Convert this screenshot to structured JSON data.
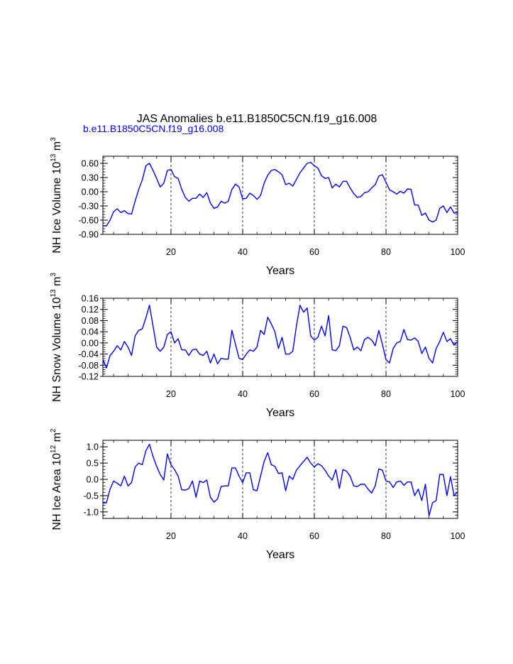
{
  "figure": {
    "title": "JAS Anomalies b.e11.B1850C5CN.f19_g16.008",
    "legend_label": "b.e11.B1850C5CN.f19_g16.008",
    "line_color": "#0000ff",
    "title_color": "#000000",
    "legend_color": "#0000ff"
  },
  "chart_data": [
    {
      "type": "line",
      "panel": "nh-ice-volume",
      "ylabel": "NH Ice Volume 10",
      "ylabel_exp": "13",
      "ylabel_unit": "m",
      "ylabel_unit_exp": "3",
      "xlabel": "Years",
      "xlim": [
        1,
        100
      ],
      "ylim": [
        -0.9,
        0.75
      ],
      "yticks": [
        "0.60",
        "0.30",
        "0.00",
        "-0.30",
        "-0.60",
        "-0.90"
      ],
      "ytick_values": [
        0.6,
        0.3,
        0.0,
        -0.3,
        -0.6,
        -0.9
      ],
      "xticks": [
        "20",
        "40",
        "60",
        "80",
        "100"
      ],
      "xtick_values": [
        20,
        40,
        60,
        80,
        100
      ],
      "grid_x": [
        20,
        40,
        60,
        80
      ],
      "series": [
        {
          "x": [
            1,
            2,
            3,
            4,
            5,
            6,
            7,
            8,
            9,
            10,
            11,
            12,
            13,
            14,
            15,
            16,
            17,
            18,
            19,
            20,
            21,
            22,
            23,
            24,
            25,
            26,
            27,
            28,
            29,
            30,
            31,
            32,
            33,
            34,
            35,
            36,
            37,
            38,
            39,
            40,
            41,
            42,
            43,
            44,
            45,
            46,
            47,
            48,
            49,
            50,
            51,
            52,
            53,
            54,
            55,
            56,
            57,
            58,
            59,
            60,
            61,
            62,
            63,
            64,
            65,
            66,
            67,
            68,
            69,
            70,
            71,
            72,
            73,
            74,
            75,
            76,
            77,
            78,
            79,
            80,
            81,
            82,
            83,
            84,
            85,
            86,
            87,
            88,
            89,
            90,
            91,
            92,
            93,
            94,
            95,
            96,
            97,
            98,
            99,
            100
          ],
          "values": [
            -0.72,
            -0.72,
            -0.6,
            -0.42,
            -0.36,
            -0.44,
            -0.4,
            -0.46,
            -0.47,
            -0.2,
            0.05,
            0.25,
            0.55,
            0.6,
            0.45,
            0.28,
            0.1,
            0.18,
            0.45,
            0.47,
            0.32,
            0.28,
            0.05,
            -0.12,
            -0.2,
            -0.14,
            -0.14,
            -0.05,
            -0.12,
            -0.02,
            -0.24,
            -0.35,
            -0.32,
            -0.2,
            -0.24,
            -0.2,
            0.05,
            0.16,
            0.1,
            -0.15,
            -0.14,
            -0.03,
            -0.08,
            -0.16,
            -0.08,
            0.18,
            0.35,
            0.45,
            0.47,
            0.42,
            0.36,
            0.15,
            0.18,
            0.12,
            0.26,
            0.4,
            0.5,
            0.6,
            0.62,
            0.55,
            0.5,
            0.34,
            0.28,
            0.3,
            0.08,
            0.16,
            0.1,
            0.22,
            0.22,
            0.08,
            -0.04,
            -0.12,
            -0.1,
            -0.02,
            0.0,
            0.08,
            0.15,
            0.33,
            0.36,
            0.2,
            0.04,
            0.0,
            -0.05,
            0.01,
            -0.03,
            0.06,
            0.05,
            -0.28,
            -0.28,
            -0.5,
            -0.45,
            -0.6,
            -0.64,
            -0.6,
            -0.35,
            -0.3,
            -0.44,
            -0.32,
            -0.45,
            -0.44
          ]
        }
      ]
    },
    {
      "type": "line",
      "panel": "nh-snow-volume",
      "ylabel": "NH Snow Volume 10",
      "ylabel_exp": "13",
      "ylabel_unit": "m",
      "ylabel_unit_exp": "3",
      "xlabel": "Years",
      "xlim": [
        1,
        100
      ],
      "ylim": [
        -0.12,
        0.16
      ],
      "yticks": [
        "0.16",
        "0.12",
        "0.08",
        "0.04",
        "0.00",
        "-0.04",
        "-0.08",
        "-0.12"
      ],
      "ytick_values": [
        0.16,
        0.12,
        0.08,
        0.04,
        0.0,
        -0.04,
        -0.08,
        -0.12
      ],
      "xticks": [
        "20",
        "40",
        "60",
        "80",
        "100"
      ],
      "xtick_values": [
        20,
        40,
        60,
        80,
        100
      ],
      "grid_x": [
        20,
        40,
        60,
        80
      ],
      "series": [
        {
          "x": [
            1,
            2,
            3,
            4,
            5,
            6,
            7,
            8,
            9,
            10,
            11,
            12,
            13,
            14,
            15,
            16,
            17,
            18,
            19,
            20,
            21,
            22,
            23,
            24,
            25,
            26,
            27,
            28,
            29,
            30,
            31,
            32,
            33,
            34,
            35,
            36,
            37,
            38,
            39,
            40,
            41,
            42,
            43,
            44,
            45,
            46,
            47,
            48,
            49,
            50,
            51,
            52,
            53,
            54,
            55,
            56,
            57,
            58,
            59,
            60,
            61,
            62,
            63,
            64,
            65,
            66,
            67,
            68,
            69,
            70,
            71,
            72,
            73,
            74,
            75,
            76,
            77,
            78,
            79,
            80,
            81,
            82,
            83,
            84,
            85,
            86,
            87,
            88,
            89,
            90,
            91,
            92,
            93,
            94,
            95,
            96,
            97,
            98,
            99,
            100
          ],
          "values": [
            -0.06,
            -0.09,
            -0.045,
            -0.03,
            -0.01,
            -0.025,
            0.005,
            -0.015,
            -0.045,
            0.025,
            0.045,
            0.05,
            0.09,
            0.135,
            0.06,
            -0.015,
            -0.03,
            -0.015,
            0.03,
            0.04,
            0.0,
            0.015,
            -0.025,
            -0.025,
            -0.045,
            -0.025,
            -0.022,
            -0.04,
            -0.045,
            -0.03,
            -0.072,
            -0.04,
            -0.075,
            -0.055,
            -0.058,
            -0.058,
            0.045,
            -0.005,
            -0.055,
            -0.06,
            -0.04,
            -0.025,
            -0.03,
            -0.015,
            0.045,
            0.03,
            0.092,
            0.068,
            0.04,
            -0.02,
            0.02,
            -0.04,
            -0.04,
            -0.03,
            0.06,
            0.135,
            0.11,
            0.125,
            0.025,
            0.01,
            0.02,
            0.06,
            0.025,
            0.098,
            -0.025,
            -0.028,
            -0.01,
            0.06,
            0.055,
            0.02,
            -0.025,
            -0.015,
            -0.028,
            0.012,
            0.02,
            0.01,
            -0.01,
            0.045,
            -0.005,
            -0.06,
            -0.072,
            -0.02,
            0.0,
            0.005,
            0.048,
            0.012,
            0.01,
            0.018,
            0.005,
            -0.038,
            -0.015,
            -0.055,
            -0.072,
            -0.02,
            0.005,
            0.038,
            0.005,
            0.015,
            -0.008,
            0.005
          ]
        }
      ]
    },
    {
      "type": "line",
      "panel": "nh-ice-area",
      "ylabel": "NH Ice Area 10",
      "ylabel_exp": "12",
      "ylabel_unit": "m",
      "ylabel_unit_exp": "2",
      "xlabel": "Years",
      "xlim": [
        1,
        100
      ],
      "ylim": [
        -1.2,
        1.2
      ],
      "yticks": [
        "1.0",
        "0.5",
        "0.0",
        "-0.5",
        "-1.0"
      ],
      "ytick_values": [
        1.0,
        0.5,
        0.0,
        -0.5,
        -1.0
      ],
      "xticks": [
        "20",
        "40",
        "60",
        "80",
        "100"
      ],
      "xtick_values": [
        20,
        40,
        60,
        80,
        100
      ],
      "grid_x": [
        20,
        40,
        60,
        80
      ],
      "series": [
        {
          "x": [
            1,
            2,
            3,
            4,
            5,
            6,
            7,
            8,
            9,
            10,
            11,
            12,
            13,
            14,
            15,
            16,
            17,
            18,
            19,
            20,
            21,
            22,
            23,
            24,
            25,
            26,
            27,
            28,
            29,
            30,
            31,
            32,
            33,
            34,
            35,
            36,
            37,
            38,
            39,
            40,
            41,
            42,
            43,
            44,
            45,
            46,
            47,
            48,
            49,
            50,
            51,
            52,
            53,
            54,
            55,
            56,
            57,
            58,
            59,
            60,
            61,
            62,
            63,
            64,
            65,
            66,
            67,
            68,
            69,
            70,
            71,
            72,
            73,
            74,
            75,
            76,
            77,
            78,
            79,
            80,
            81,
            82,
            83,
            84,
            85,
            86,
            87,
            88,
            89,
            90,
            91,
            92,
            93,
            94,
            95,
            96,
            97,
            98,
            99,
            100
          ],
          "values": [
            -0.72,
            -0.72,
            -0.3,
            -0.05,
            -0.12,
            -0.2,
            0.1,
            -0.2,
            -0.1,
            0.38,
            0.5,
            0.45,
            0.88,
            1.08,
            0.7,
            0.4,
            0.15,
            -0.02,
            0.78,
            0.45,
            0.3,
            0.1,
            -0.32,
            -0.33,
            -0.28,
            -0.05,
            -0.55,
            -0.05,
            -0.1,
            -0.02,
            -0.55,
            -0.7,
            -0.6,
            -0.22,
            -0.2,
            -0.2,
            0.35,
            0.35,
            0.1,
            -0.1,
            0.2,
            0.2,
            -0.32,
            -0.35,
            0.1,
            0.55,
            0.82,
            0.45,
            0.4,
            0.18,
            0.2,
            -0.35,
            0.1,
            0.0,
            0.28,
            0.42,
            0.55,
            0.68,
            0.5,
            0.38,
            0.48,
            0.42,
            0.28,
            0.1,
            -0.02,
            0.3,
            -0.28,
            0.3,
            0.25,
            0.1,
            -0.2,
            -0.22,
            -0.15,
            -0.15,
            -0.3,
            -0.42,
            -0.2,
            0.32,
            0.28,
            -0.05,
            -0.08,
            -0.25,
            -0.08,
            -0.05,
            -0.18,
            -0.08,
            -0.08,
            -0.5,
            -0.3,
            -0.65,
            -0.15,
            -1.12,
            -0.72,
            -0.65,
            0.15,
            0.15,
            -0.5,
            0.08,
            -0.5,
            -0.38
          ]
        }
      ]
    }
  ]
}
